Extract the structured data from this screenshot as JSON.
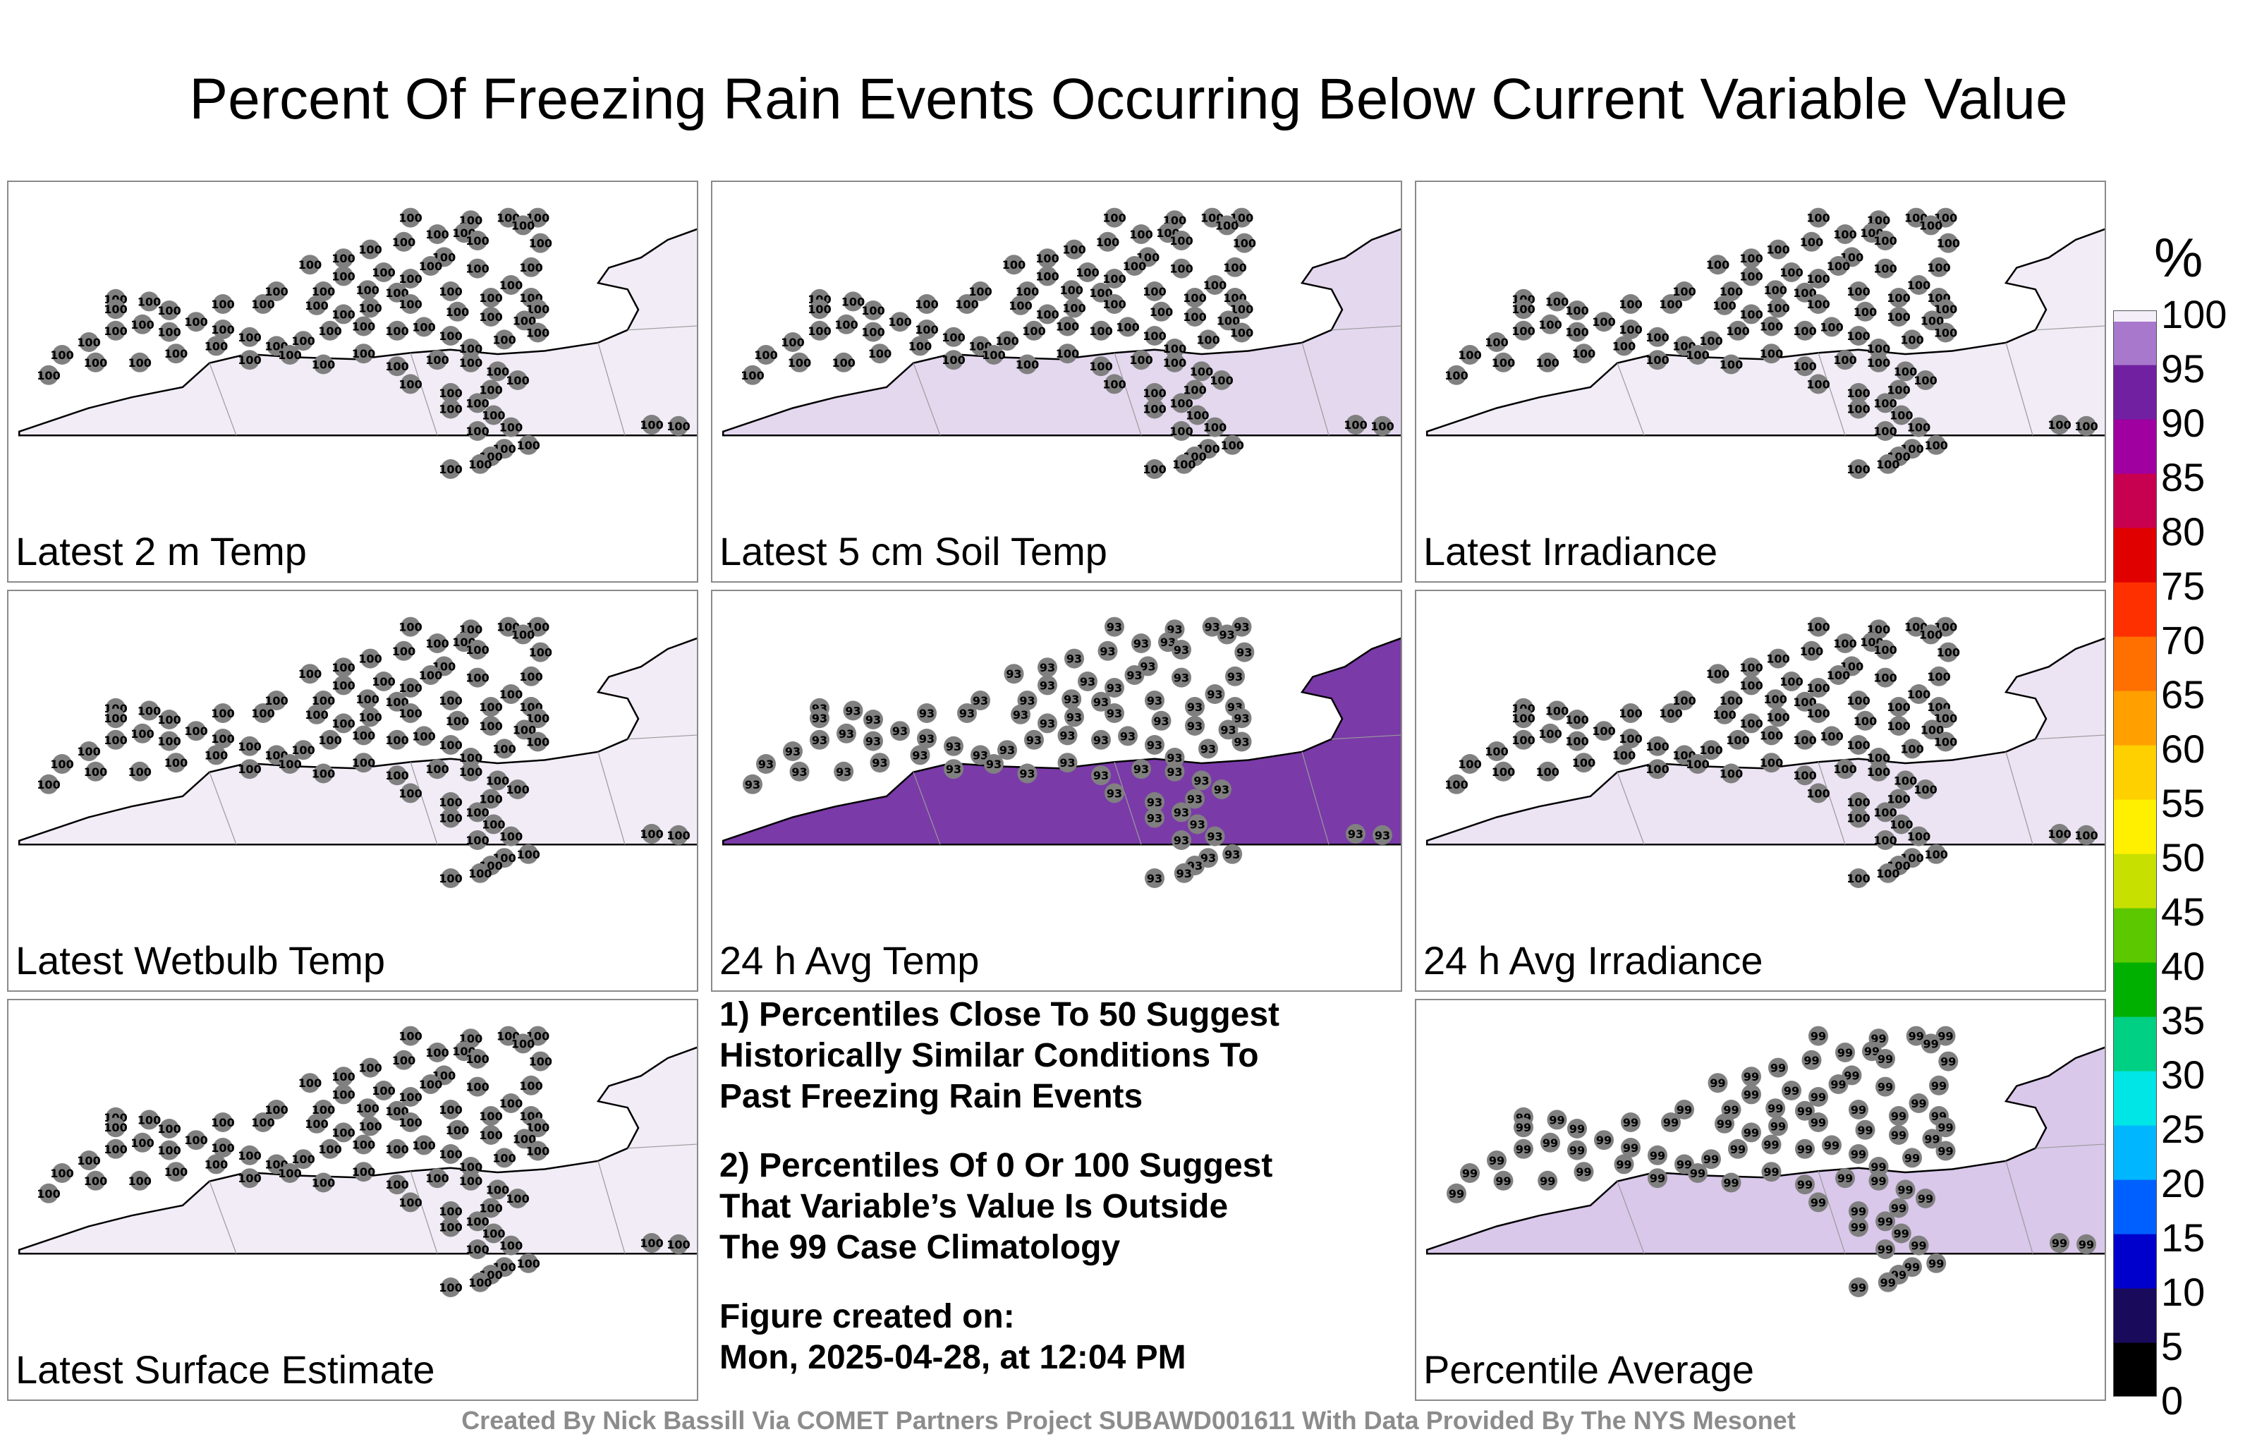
{
  "title": "Percent Of Freezing Rain Events Occurring Below Current Variable Value",
  "panels": [
    {
      "label": "Latest 2 m Temp",
      "fill": "#f1ecf6",
      "value": "100"
    },
    {
      "label": "Latest 5 cm Soil Temp",
      "fill": "#e4d8ef",
      "value": "100"
    },
    {
      "label": "Latest Irradiance",
      "fill": "#f1ecf6",
      "value": "100"
    },
    {
      "label": "Latest Wetbulb Temp",
      "fill": "#f1ecf6",
      "value": "100"
    },
    {
      "label": "24 h Avg Temp",
      "fill": "#7a3aa8",
      "value": "93"
    },
    {
      "label": "24 h Avg Irradiance",
      "fill": "#ece3f3",
      "value": "100"
    },
    {
      "label": "Latest Surface Estimate",
      "fill": "#f1ecf6",
      "value": "100"
    },
    {
      "label": "Percentile Average",
      "fill": "#d9c8ea",
      "value": "99"
    }
  ],
  "notes": {
    "note1": "1) Percentiles Close To 50 Suggest\nHistorically Similar Conditions To\nPast Freezing Rain Events",
    "note2": "2) Percentiles Of 0 Or 100 Suggest\nThat Variable’s Value Is Outside\nThe 99 Case Climatology",
    "created": "Figure created on:\nMon, 2025-04-28, at 12:04 PM"
  },
  "colorbar": {
    "unit": "%",
    "ticks": [
      "100",
      "95",
      "90",
      "85",
      "80",
      "75",
      "70",
      "65",
      "60",
      "55",
      "50",
      "45",
      "40",
      "35",
      "30",
      "25",
      "20",
      "15",
      "10",
      "5",
      "0"
    ]
  },
  "footer": "Created By Nick Bassill Via COMET Partners Project SUBAWD001611 With Data Provided By The NYS Mesonet"
}
